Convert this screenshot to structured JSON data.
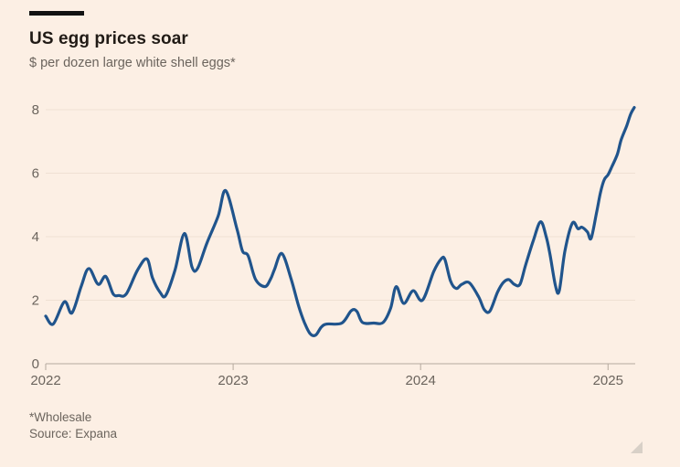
{
  "header": {
    "title": "US egg prices soar",
    "subtitle": "$ per dozen large white shell eggs*"
  },
  "footer": {
    "footnote": "*Wholesale",
    "source": "Source: Expana"
  },
  "colors": {
    "background": "#FCEFE4",
    "line": "#20548C",
    "grid": "#EFE0D3",
    "axis": "#B5A99E",
    "title_text": "#211B16",
    "muted_text": "#6B645D"
  },
  "chart_data": {
    "type": "line",
    "title": "US egg prices soar",
    "subtitle": "$ per dozen large white shell eggs*",
    "series_name": "US wholesale price, $ per dozen large white shell eggs",
    "grid": "horizontal",
    "legend": "none",
    "xlabel": "",
    "ylabel": "",
    "xticks": [
      2022,
      2023,
      2024,
      2025
    ],
    "yticks": [
      0,
      2,
      4,
      6,
      8
    ],
    "xlim": [
      2022,
      2025.145
    ],
    "ylim": [
      0,
      8.6
    ],
    "x": [
      2022.0,
      2022.04,
      2022.1,
      2022.14,
      2022.19,
      2022.23,
      2022.28,
      2022.32,
      2022.36,
      2022.39,
      2022.43,
      2022.49,
      2022.54,
      2022.57,
      2022.61,
      2022.64,
      2022.69,
      2022.74,
      2022.78,
      2022.81,
      2022.86,
      2022.92,
      2022.96,
      2023.02,
      2023.05,
      2023.08,
      2023.12,
      2023.17,
      2023.2,
      2023.22,
      2023.26,
      2023.31,
      2023.35,
      2023.38,
      2023.41,
      2023.44,
      2023.47,
      2023.5,
      2023.58,
      2023.63,
      2023.66,
      2023.69,
      2023.75,
      2023.8,
      2023.84,
      2023.87,
      2023.91,
      2023.96,
      2024.01,
      2024.07,
      2024.11,
      2024.13,
      2024.16,
      2024.19,
      2024.22,
      2024.26,
      2024.31,
      2024.34,
      2024.37,
      2024.41,
      2024.44,
      2024.47,
      2024.5,
      2024.53,
      2024.56,
      2024.6,
      2024.64,
      2024.67,
      2024.69,
      2024.72,
      2024.74,
      2024.77,
      2024.81,
      2024.84,
      2024.86,
      2024.89,
      2024.91,
      2024.94,
      2024.96,
      2024.98,
      2025.0,
      2025.02,
      2025.05,
      2025.07,
      2025.1,
      2025.12,
      2025.14
    ],
    "y": [
      1.5,
      1.25,
      1.95,
      1.6,
      2.45,
      3.0,
      2.5,
      2.75,
      2.2,
      2.15,
      2.2,
      2.95,
      3.3,
      2.7,
      2.25,
      2.15,
      2.95,
      4.1,
      3.05,
      3.0,
      3.8,
      4.65,
      5.45,
      4.25,
      3.55,
      3.4,
      2.65,
      2.43,
      2.67,
      2.96,
      3.47,
      2.65,
      1.8,
      1.3,
      0.95,
      0.9,
      1.15,
      1.25,
      1.28,
      1.67,
      1.65,
      1.3,
      1.28,
      1.3,
      1.75,
      2.43,
      1.9,
      2.3,
      2.0,
      2.9,
      3.3,
      3.28,
      2.6,
      2.37,
      2.5,
      2.55,
      2.1,
      1.7,
      1.66,
      2.25,
      2.55,
      2.65,
      2.5,
      2.5,
      3.1,
      3.85,
      4.47,
      4.0,
      3.45,
      2.45,
      2.3,
      3.55,
      4.43,
      4.25,
      4.3,
      4.15,
      3.95,
      4.8,
      5.4,
      5.8,
      5.95,
      6.2,
      6.6,
      7.05,
      7.5,
      7.85,
      8.07
    ]
  }
}
